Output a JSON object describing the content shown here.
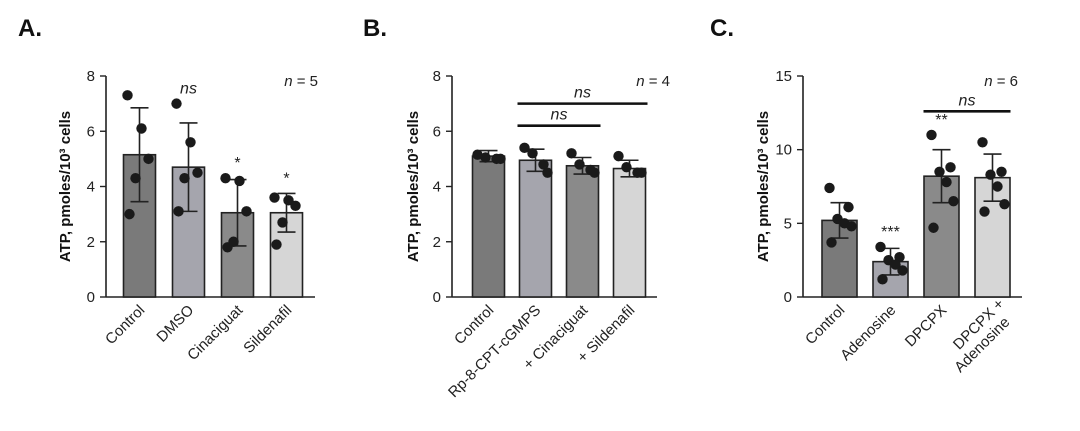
{
  "chart_data": [
    {
      "type": "bar",
      "panel": "A.",
      "ylabel": "ATP, pmoles/10³ cells",
      "ylim": [
        0,
        8
      ],
      "yticks": [
        0,
        2,
        4,
        6,
        8
      ],
      "n_label": "n = 5",
      "categories": [
        "Control",
        "DMSO",
        "Cinaciguat",
        "Sildenafil"
      ],
      "values": [
        5.15,
        4.7,
        3.05,
        3.05
      ],
      "errors": [
        1.7,
        1.6,
        1.2,
        0.7
      ],
      "colors": [
        "#7a7a7a",
        "#a5a5ad",
        "#8a8a8a",
        "#d6d6d6"
      ],
      "points": [
        [
          7.3,
          6.1,
          5.0,
          4.3,
          3.0
        ],
        [
          7.0,
          5.6,
          4.5,
          4.3,
          3.1
        ],
        [
          4.3,
          4.2,
          3.1,
          2.0,
          1.8
        ],
        [
          3.6,
          3.5,
          3.3,
          2.7,
          1.9
        ]
      ],
      "significance": [
        "",
        "ns",
        "*",
        "*"
      ],
      "brackets": []
    },
    {
      "type": "bar",
      "panel": "B.",
      "ylabel": "ATP, pmoles/10³ cells",
      "ylim": [
        0,
        8
      ],
      "yticks": [
        0,
        2,
        4,
        6,
        8
      ],
      "n_label": "n = 4",
      "categories": [
        "Control",
        "Rp-8-CPT-cGMPS",
        "+ Cinaciguat",
        "+ Sildenafil"
      ],
      "values": [
        5.1,
        4.95,
        4.75,
        4.65
      ],
      "errors": [
        0.2,
        0.4,
        0.3,
        0.3
      ],
      "colors": [
        "#7a7a7a",
        "#a5a5ad",
        "#8a8a8a",
        "#d6d6d6"
      ],
      "points": [
        [
          5.15,
          5.05,
          5.0,
          5.0
        ],
        [
          5.4,
          5.2,
          4.8,
          4.5
        ],
        [
          5.2,
          4.8,
          4.6,
          4.5
        ],
        [
          5.1,
          4.7,
          4.5,
          4.5
        ]
      ],
      "significance": [
        "",
        "",
        "",
        ""
      ],
      "brackets": [
        {
          "from": 1,
          "to": 2,
          "label": "ns",
          "y": 6.2
        },
        {
          "from": 1,
          "to": 3,
          "label": "ns",
          "y": 7.0
        }
      ]
    },
    {
      "type": "bar",
      "panel": "C.",
      "ylabel": "ATP, pmoles/10³ cells",
      "ylim": [
        0,
        15
      ],
      "yticks": [
        0,
        5,
        10,
        15
      ],
      "n_label": "n = 6",
      "categories": [
        "Control",
        "Adenosine",
        "DPCPX",
        "DPCPX +\nAdenosine"
      ],
      "values": [
        5.2,
        2.4,
        8.2,
        8.1
      ],
      "errors": [
        1.2,
        0.9,
        1.8,
        1.6
      ],
      "colors": [
        "#7a7a7a",
        "#a5a5ad",
        "#8a8a8a",
        "#d6d6d6"
      ],
      "points": [
        [
          7.4,
          6.1,
          5.3,
          5.0,
          4.8,
          3.7
        ],
        [
          3.4,
          2.7,
          2.5,
          2.2,
          1.8,
          1.2
        ],
        [
          11.0,
          8.8,
          8.5,
          7.8,
          6.5,
          4.7
        ],
        [
          10.5,
          8.5,
          8.3,
          7.5,
          6.3,
          5.8
        ]
      ],
      "significance": [
        "",
        "***",
        "**",
        ""
      ],
      "brackets": [
        {
          "from": 2,
          "to": 3,
          "label": "ns",
          "y": 12.6
        }
      ]
    }
  ]
}
